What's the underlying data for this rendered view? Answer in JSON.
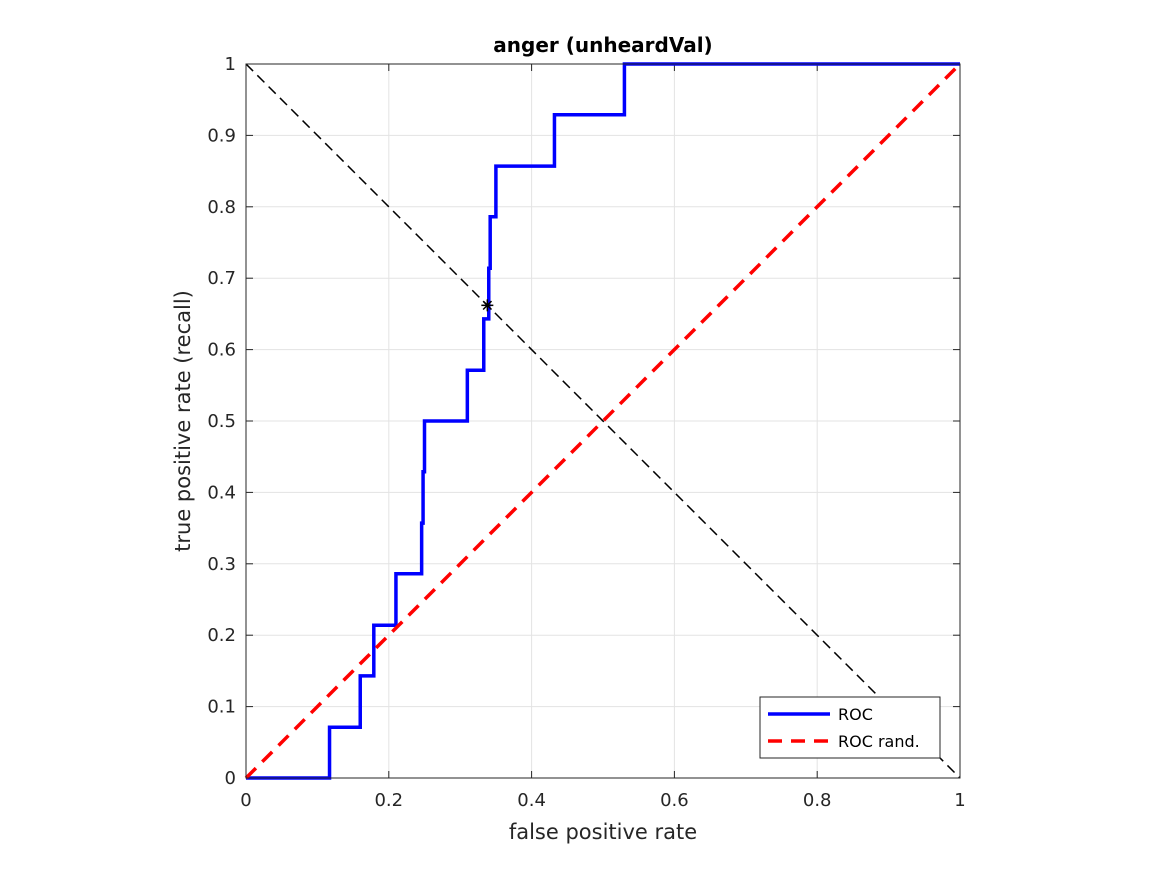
{
  "chart_data": {
    "type": "line",
    "title": "anger (unheardVal)",
    "xlabel": "false positive rate",
    "ylabel": "true positive rate (recall)",
    "xlim": [
      0,
      1
    ],
    "ylim": [
      0,
      1
    ],
    "grid": true,
    "legend_location": "bottom-right",
    "xticks": [
      0,
      0.2,
      0.4,
      0.6,
      0.8,
      1
    ],
    "xtick_labels": [
      "0",
      "0.2",
      "0.4",
      "0.6",
      "0.8",
      "1"
    ],
    "yticks": [
      0,
      0.1,
      0.2,
      0.3,
      0.4,
      0.5,
      0.6,
      0.7,
      0.8,
      0.9,
      1
    ],
    "ytick_labels": [
      "0",
      "0.1",
      "0.2",
      "0.3",
      "0.4",
      "0.5",
      "0.6",
      "0.7",
      "0.8",
      "0.9",
      "1"
    ],
    "series": [
      {
        "name": "ROC",
        "color": "#0000ff",
        "style": "solid",
        "x": [
          0,
          0.117,
          0.117,
          0.16,
          0.16,
          0.179,
          0.179,
          0.21,
          0.21,
          0.246,
          0.246,
          0.248,
          0.248,
          0.25,
          0.25,
          0.31,
          0.31,
          0.333,
          0.333,
          0.34,
          0.34,
          0.342,
          0.342,
          0.35,
          0.35,
          0.432,
          0.432,
          0.53,
          0.53,
          1
        ],
        "y": [
          0,
          0,
          0.071,
          0.071,
          0.143,
          0.143,
          0.214,
          0.214,
          0.286,
          0.286,
          0.357,
          0.357,
          0.429,
          0.429,
          0.5,
          0.5,
          0.571,
          0.571,
          0.643,
          0.643,
          0.714,
          0.714,
          0.786,
          0.786,
          0.857,
          0.857,
          0.929,
          0.929,
          1,
          1
        ]
      },
      {
        "name": "ROC rand.",
        "color": "#ff0000",
        "style": "dashed",
        "x": [
          0,
          1
        ],
        "y": [
          0,
          1
        ]
      }
    ],
    "reference_line": {
      "color": "#000000",
      "style": "dashed",
      "x": [
        0,
        1
      ],
      "y": [
        1,
        0
      ]
    },
    "marker_point": {
      "marker": "asterisk",
      "color": "#000000",
      "x": 0.338,
      "y": 0.662
    }
  }
}
